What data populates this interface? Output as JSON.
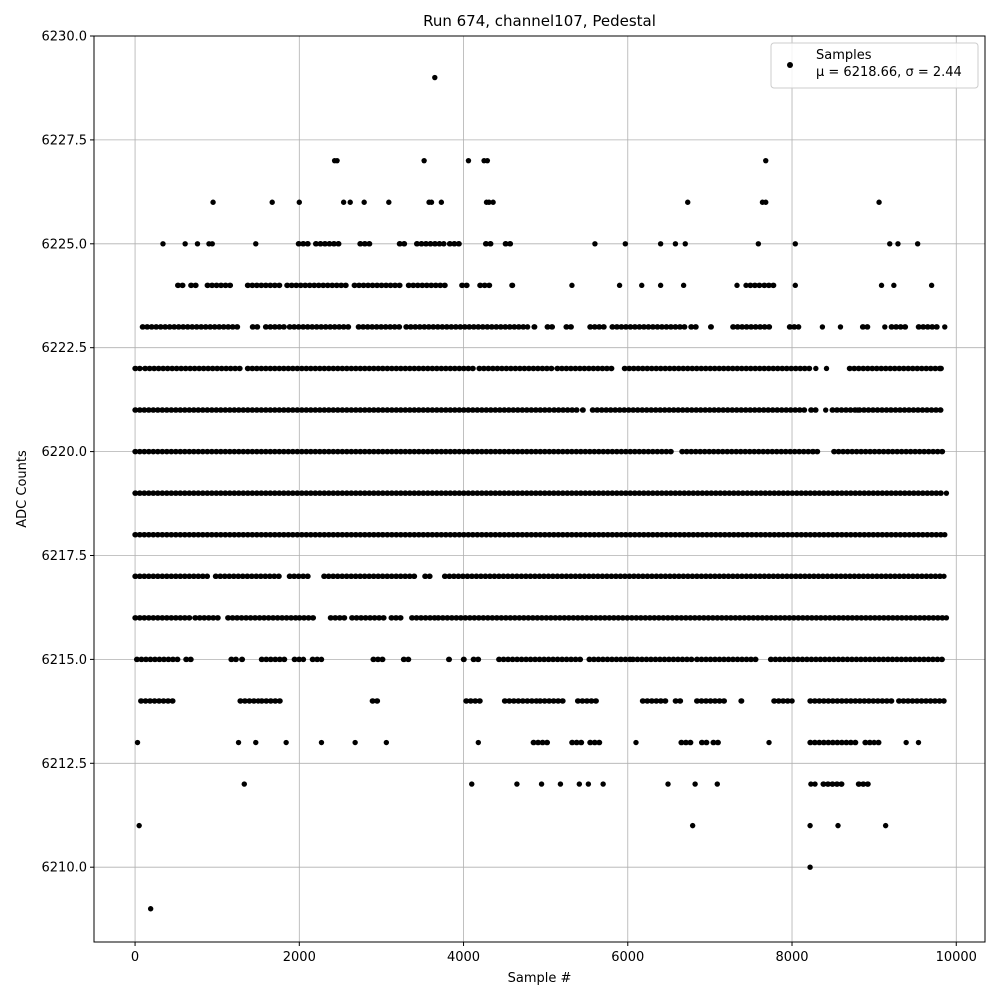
{
  "chart_data": {
    "type": "scatter",
    "title": "Run 674, channel107, Pedestal",
    "xlabel": "Sample #",
    "ylabel": "ADC Counts",
    "xlim": [
      -500,
      10350
    ],
    "ylim": [
      6208.2,
      6230.0
    ],
    "xticks": [
      0,
      2000,
      4000,
      6000,
      8000,
      10000
    ],
    "xtick_labels": [
      "0",
      "2000",
      "4000",
      "6000",
      "8000",
      "10000"
    ],
    "yticks": [
      6210.0,
      6212.5,
      6215.0,
      6217.5,
      6220.0,
      6222.5,
      6225.0,
      6227.5,
      6230.0
    ],
    "ytick_labels": [
      "6210.0",
      "6212.5",
      "6215.0",
      "6217.5",
      "6220.0",
      "6222.5",
      "6225.0",
      "6227.5",
      "6230.0"
    ],
    "grid": true,
    "legend_position": "top-right",
    "marker_color": "#000000",
    "series": [
      {
        "name": "Samples",
        "stats_label": "μ = 6218.66, σ = 2.44",
        "points": [
          [
            3650,
            6229
          ],
          [
            2430,
            6227
          ],
          [
            2460,
            6227
          ],
          [
            3520,
            6227
          ],
          [
            4060,
            6227
          ],
          [
            4250,
            6227
          ],
          [
            4290,
            6227
          ],
          [
            7680,
            6227
          ],
          [
            950,
            6226
          ],
          [
            1670,
            6226
          ],
          [
            2000,
            6226
          ],
          [
            2540,
            6226
          ],
          [
            2620,
            6226
          ],
          [
            2790,
            6226
          ],
          [
            3090,
            6226
          ],
          [
            3580,
            6226
          ],
          [
            3610,
            6226
          ],
          [
            3730,
            6226
          ],
          [
            4280,
            6226
          ],
          [
            4310,
            6226
          ],
          [
            4360,
            6226
          ],
          [
            6730,
            6226
          ],
          [
            7640,
            6226
          ],
          [
            7680,
            6226
          ],
          [
            9060,
            6226
          ],
          [
            340,
            6225
          ],
          [
            610,
            6225
          ],
          [
            760,
            6225
          ],
          [
            900,
            6225
          ],
          [
            940,
            6225
          ],
          [
            1470,
            6225
          ],
          [
            5600,
            6225
          ],
          [
            5970,
            6225
          ],
          [
            6400,
            6225
          ],
          [
            6580,
            6225
          ],
          [
            6700,
            6225
          ],
          [
            7590,
            6225
          ],
          [
            8040,
            6225
          ],
          [
            9190,
            6225
          ],
          [
            9290,
            6225
          ],
          [
            9530,
            6225
          ],
          [
            5320,
            6224
          ],
          [
            5900,
            6224
          ],
          [
            6170,
            6224
          ],
          [
            6400,
            6224
          ],
          [
            6680,
            6224
          ],
          [
            7330,
            6224
          ],
          [
            7440,
            6224
          ],
          [
            8040,
            6224
          ],
          [
            9090,
            6224
          ],
          [
            9240,
            6224
          ],
          [
            9700,
            6224
          ],
          [
            8370,
            6223
          ],
          [
            8590,
            6223
          ],
          [
            9130,
            6223
          ],
          [
            9860,
            6223
          ],
          [
            8290,
            6222
          ],
          [
            8420,
            6222
          ],
          [
            8410,
            6221
          ],
          [
            8800,
            6221
          ],
          [
            8260,
            6220
          ],
          [
            9880,
            6219
          ],
          [
            9860,
            6218
          ],
          [
            9850,
            6217
          ],
          [
            9880,
            6216
          ],
          [
            9850,
            6214
          ],
          [
            30,
            6213
          ],
          [
            1260,
            6213
          ],
          [
            1470,
            6213
          ],
          [
            1840,
            6213
          ],
          [
            2270,
            6213
          ],
          [
            2680,
            6213
          ],
          [
            3060,
            6213
          ],
          [
            4180,
            6213
          ],
          [
            6100,
            6213
          ],
          [
            7720,
            6213
          ],
          [
            9390,
            6213
          ],
          [
            9540,
            6213
          ],
          [
            1330,
            6212
          ],
          [
            4100,
            6212
          ],
          [
            4650,
            6212
          ],
          [
            4950,
            6212
          ],
          [
            5180,
            6212
          ],
          [
            5410,
            6212
          ],
          [
            5520,
            6212
          ],
          [
            5700,
            6212
          ],
          [
            6490,
            6212
          ],
          [
            6820,
            6212
          ],
          [
            7090,
            6212
          ],
          [
            8230,
            6212
          ],
          [
            8280,
            6212
          ],
          [
            50,
            6211
          ],
          [
            6790,
            6211
          ],
          [
            8220,
            6211
          ],
          [
            8560,
            6211
          ],
          [
            9140,
            6211
          ],
          [
            8220,
            6210
          ],
          [
            190,
            6209
          ]
        ],
        "bands": [
          {
            "y": 6225,
            "segments": [
              [
                1990,
                2110
              ],
              [
                2200,
                2520
              ],
              [
                2740,
                2860
              ],
              [
                3220,
                3280
              ],
              [
                3430,
                3760
              ],
              [
                3830,
                3990
              ],
              [
                4270,
                4360
              ],
              [
                4510,
                4570
              ]
            ]
          },
          {
            "y": 6224,
            "segments": [
              [
                520,
                600
              ],
              [
                680,
                760
              ],
              [
                880,
                1200
              ],
              [
                1370,
                1800
              ],
              [
                1850,
                2610
              ],
              [
                2670,
                3250
              ],
              [
                3330,
                3780
              ],
              [
                3980,
                4060
              ],
              [
                4200,
                4360
              ],
              [
                4590,
                4630
              ],
              [
                7490,
                7640
              ],
              [
                7660,
                7780
              ]
            ]
          },
          {
            "y": 6223,
            "segments": [
              [
                90,
                1290
              ],
              [
                1430,
                1500
              ],
              [
                1590,
                1840
              ],
              [
                1880,
                2640
              ],
              [
                2720,
                3240
              ],
              [
                3300,
                4780
              ],
              [
                4860,
                4900
              ],
              [
                5020,
                5100
              ],
              [
                5250,
                5330
              ],
              [
                5540,
                5730
              ],
              [
                5810,
                6720
              ],
              [
                6770,
                6850
              ],
              [
                7010,
                7060
              ],
              [
                7280,
                7760
              ],
              [
                7970,
                8080
              ],
              [
                8860,
                8920
              ],
              [
                9210,
                9410
              ],
              [
                9540,
                9800
              ]
            ]
          },
          {
            "y": 6222,
            "segments": [
              [
                0,
                60
              ],
              [
                120,
                1300
              ],
              [
                1370,
                4140
              ],
              [
                4190,
                5080
              ],
              [
                5140,
                5820
              ],
              [
                5960,
                8240
              ],
              [
                8700,
                9800
              ],
              [
                9810,
                9850
              ]
            ]
          },
          {
            "y": 6221,
            "segments": [
              [
                0,
                5050
              ],
              [
                5100,
                5380
              ],
              [
                5450,
                5480
              ],
              [
                5570,
                8160
              ],
              [
                8230,
                8290
              ],
              [
                8490,
                9850
              ]
            ]
          },
          {
            "y": 6220,
            "segments": [
              [
                0,
                6530
              ],
              [
                6660,
                8350
              ],
              [
                8510,
                9850
              ]
            ]
          },
          {
            "y": 6219,
            "segments": [
              [
                0,
                9850
              ]
            ]
          },
          {
            "y": 6218,
            "segments": [
              [
                0,
                9850
              ]
            ]
          },
          {
            "y": 6217,
            "segments": [
              [
                0,
                880
              ],
              [
                980,
                1800
              ],
              [
                1880,
                2150
              ],
              [
                2300,
                3420
              ],
              [
                3530,
                3590
              ],
              [
                3770,
                9850
              ]
            ]
          },
          {
            "y": 6216,
            "segments": [
              [
                0,
                670
              ],
              [
                730,
                1030
              ],
              [
                1130,
                1970
              ],
              [
                2000,
                2200
              ],
              [
                2380,
                2560
              ],
              [
                2640,
                3060
              ],
              [
                3120,
                3250
              ],
              [
                3370,
                3650
              ],
              [
                3690,
                9850
              ]
            ]
          },
          {
            "y": 6215,
            "segments": [
              [
                20,
                520
              ],
              [
                620,
                700
              ],
              [
                1170,
                1250
              ],
              [
                1300,
                1340
              ],
              [
                1540,
                1850
              ],
              [
                1940,
                2050
              ],
              [
                2160,
                2270
              ],
              [
                2900,
                3040
              ],
              [
                3270,
                3330
              ],
              [
                3820,
                3850
              ],
              [
                4000,
                4050
              ],
              [
                4120,
                4220
              ],
              [
                4430,
                5470
              ],
              [
                5530,
                6030
              ],
              [
                6060,
                6810
              ],
              [
                6840,
                7590
              ],
              [
                7740,
                9850
              ]
            ]
          },
          {
            "y": 6214,
            "segments": [
              [
                70,
                470
              ],
              [
                1280,
                1500
              ],
              [
                1540,
                1780
              ],
              [
                2890,
                2960
              ],
              [
                4030,
                4230
              ],
              [
                4500,
                4900
              ],
              [
                4930,
                5230
              ],
              [
                5390,
                5630
              ],
              [
                6180,
                6500
              ],
              [
                6580,
                6650
              ],
              [
                6840,
                7210
              ],
              [
                7380,
                7420
              ],
              [
                7780,
                8000
              ],
              [
                8220,
                9230
              ],
              [
                9300,
                9850
              ]
            ]
          },
          {
            "y": 6213,
            "segments": [
              [
                4850,
                5020
              ],
              [
                5320,
                5440
              ],
              [
                5540,
                5700
              ],
              [
                6650,
                6810
              ],
              [
                6900,
                6970
              ],
              [
                7040,
                7110
              ],
              [
                8220,
                8820
              ],
              [
                8890,
                9000
              ],
              [
                9050,
                9090
              ]
            ]
          },
          {
            "y": 6212,
            "segments": [
              [
                8380,
                8630
              ],
              [
                8810,
                8950
              ]
            ]
          }
        ]
      }
    ]
  }
}
